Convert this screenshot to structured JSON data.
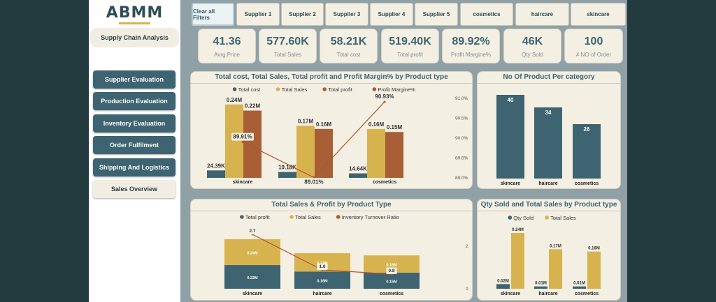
{
  "sidebar": {
    "logo": "ABMM",
    "title": "Supply Chain Analysis",
    "nav": [
      {
        "label": "Supplier Evaluation"
      },
      {
        "label": "Production Evaluation"
      },
      {
        "label": "Inventory Evaluation"
      },
      {
        "label": "Order Fulfilment"
      },
      {
        "label": "Shipping And Logistics"
      },
      {
        "label": "Sales Overview"
      }
    ]
  },
  "filters": [
    "Clear all Filters",
    "Supplier 1",
    "Supplier 2",
    "Supplier 3",
    "Supplier 4",
    "Supplier 5",
    "cosmetics",
    "haircare",
    "skincare"
  ],
  "kpis": [
    {
      "value": "41.36",
      "label": "Avrg.Price"
    },
    {
      "value": "577.60K",
      "label": "Total Sales"
    },
    {
      "value": "58.21K",
      "label": "Total cost"
    },
    {
      "value": "519.40K",
      "label": "Total profit"
    },
    {
      "value": "89.92%",
      "label": "Profit Margine%"
    },
    {
      "value": "46K",
      "label": "Qty Sold"
    },
    {
      "value": "100",
      "label": "# NO of Order"
    }
  ],
  "colors": {
    "teal": "#3d6470",
    "gold": "#d7b34f",
    "rust": "#a85f35",
    "line": "#b0572b"
  },
  "chart_data": [
    {
      "type": "bar",
      "title": "Total cost, Total Sales, Total profit and Profit Margin% by Product type",
      "categories": [
        "skincare",
        "haircare",
        "cosmetics"
      ],
      "series": [
        {
          "name": "Total cost",
          "values": [
            24390,
            19180,
            14640
          ],
          "labels": [
            "24.39K",
            "19.18K",
            "14.64K"
          ]
        },
        {
          "name": "Total Sales",
          "values": [
            240000,
            170000,
            160000
          ],
          "labels": [
            "0.24M",
            "0.17M",
            "0.16M"
          ]
        },
        {
          "name": "Total profit",
          "values": [
            220000,
            160000,
            150000
          ],
          "labels": [
            "0.22M",
            "0.16M",
            "0.15M"
          ]
        }
      ],
      "line": {
        "name": "Profit Margine%",
        "values": [
          89.91,
          89.01,
          90.93
        ],
        "labels": [
          "89.91%",
          "89.01%",
          "90.93%"
        ]
      },
      "y2_ticks": [
        "91.0%",
        "90.5%",
        "90.0%",
        "89.5%",
        "89.0%"
      ],
      "y2_range": [
        89.0,
        91.0
      ]
    },
    {
      "type": "bar",
      "title": "No Of Product Per category",
      "categories": [
        "skincare",
        "haircare",
        "cosmetics"
      ],
      "values": [
        40,
        34,
        26
      ]
    },
    {
      "type": "bar",
      "title": "Total Sales & Profit by Product Type",
      "categories": [
        "skincare",
        "haircare",
        "cosmetics"
      ],
      "series": [
        {
          "name": "Total profit",
          "values": [
            220000,
            160000,
            150000
          ],
          "labels": [
            "0.22M",
            "0.16M",
            "0.15M"
          ]
        },
        {
          "name": "Total Sales",
          "values": [
            240000,
            170000,
            160000
          ],
          "labels": [
            "0.24M",
            "0.17M",
            "0.16M"
          ]
        }
      ],
      "line": {
        "name": "Inventory Turnover Ratio",
        "values": [
          2.7,
          1.0,
          0.8
        ],
        "labels": [
          "2.7",
          "1.0",
          "0.8"
        ]
      },
      "y2_ticks": [
        "2",
        "0"
      ]
    },
    {
      "type": "bar",
      "title": "Qty Sold and Total Sales by Product type",
      "categories": [
        "skincare",
        "haircare",
        "cosmetics"
      ],
      "series": [
        {
          "name": "Qty Sold",
          "values": [
            0.02,
            0.01,
            0.01
          ],
          "labels": [
            "0.02M",
            "0.01M",
            "0.01M"
          ]
        },
        {
          "name": "Total Sales",
          "values": [
            0.24,
            0.17,
            0.16
          ],
          "labels": [
            "0.24M",
            "0.17M",
            "0.16M"
          ]
        }
      ]
    }
  ]
}
